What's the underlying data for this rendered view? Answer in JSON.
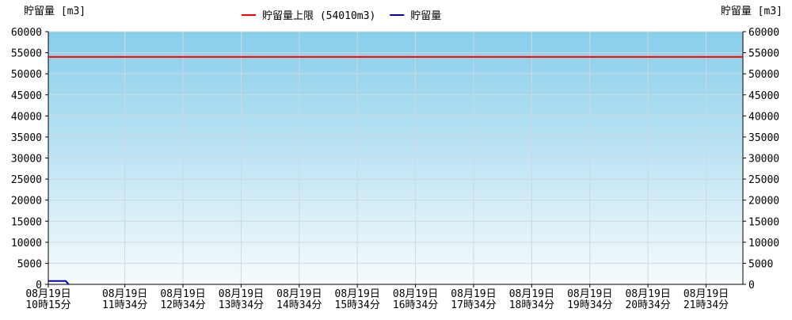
{
  "chart_data": {
    "type": "line",
    "y_label": "貯留量 [m3]",
    "y2_label": "貯留量 [m3]",
    "xlim": [
      10.25,
      22.2
    ],
    "xticks": [
      {
        "value": 10.25,
        "label": "08月19日\n10時15分"
      },
      {
        "value": 11.5667,
        "label": "08月19日\n11時34分"
      },
      {
        "value": 12.5667,
        "label": "08月19日\n12時34分"
      },
      {
        "value": 13.5667,
        "label": "08月19日\n13時34分"
      },
      {
        "value": 14.5667,
        "label": "08月19日\n14時34分"
      },
      {
        "value": 15.5667,
        "label": "08月19日\n15時34分"
      },
      {
        "value": 16.5667,
        "label": "08月19日\n16時34分"
      },
      {
        "value": 17.5667,
        "label": "08月19日\n17時34分"
      },
      {
        "value": 18.5667,
        "label": "08月19日\n18時34分"
      },
      {
        "value": 19.5667,
        "label": "08月19日\n19時34分"
      },
      {
        "value": 20.5667,
        "label": "08月19日\n20時34分"
      },
      {
        "value": 21.5667,
        "label": "08月19日\n21時34分"
      }
    ],
    "ylim": [
      0,
      60000
    ],
    "yticks": [
      0,
      5000,
      10000,
      15000,
      20000,
      25000,
      30000,
      35000,
      40000,
      45000,
      50000,
      55000,
      60000
    ],
    "grid": true,
    "reference_line": {
      "name": "貯留量上限 (54010m3)",
      "value": 54010,
      "color": "#ff0000"
    },
    "series": [
      {
        "name": "貯留量",
        "color": "#0000aa",
        "x": [
          10.25,
          10.55,
          10.6
        ],
        "values": [
          800,
          800,
          0
        ]
      }
    ]
  }
}
